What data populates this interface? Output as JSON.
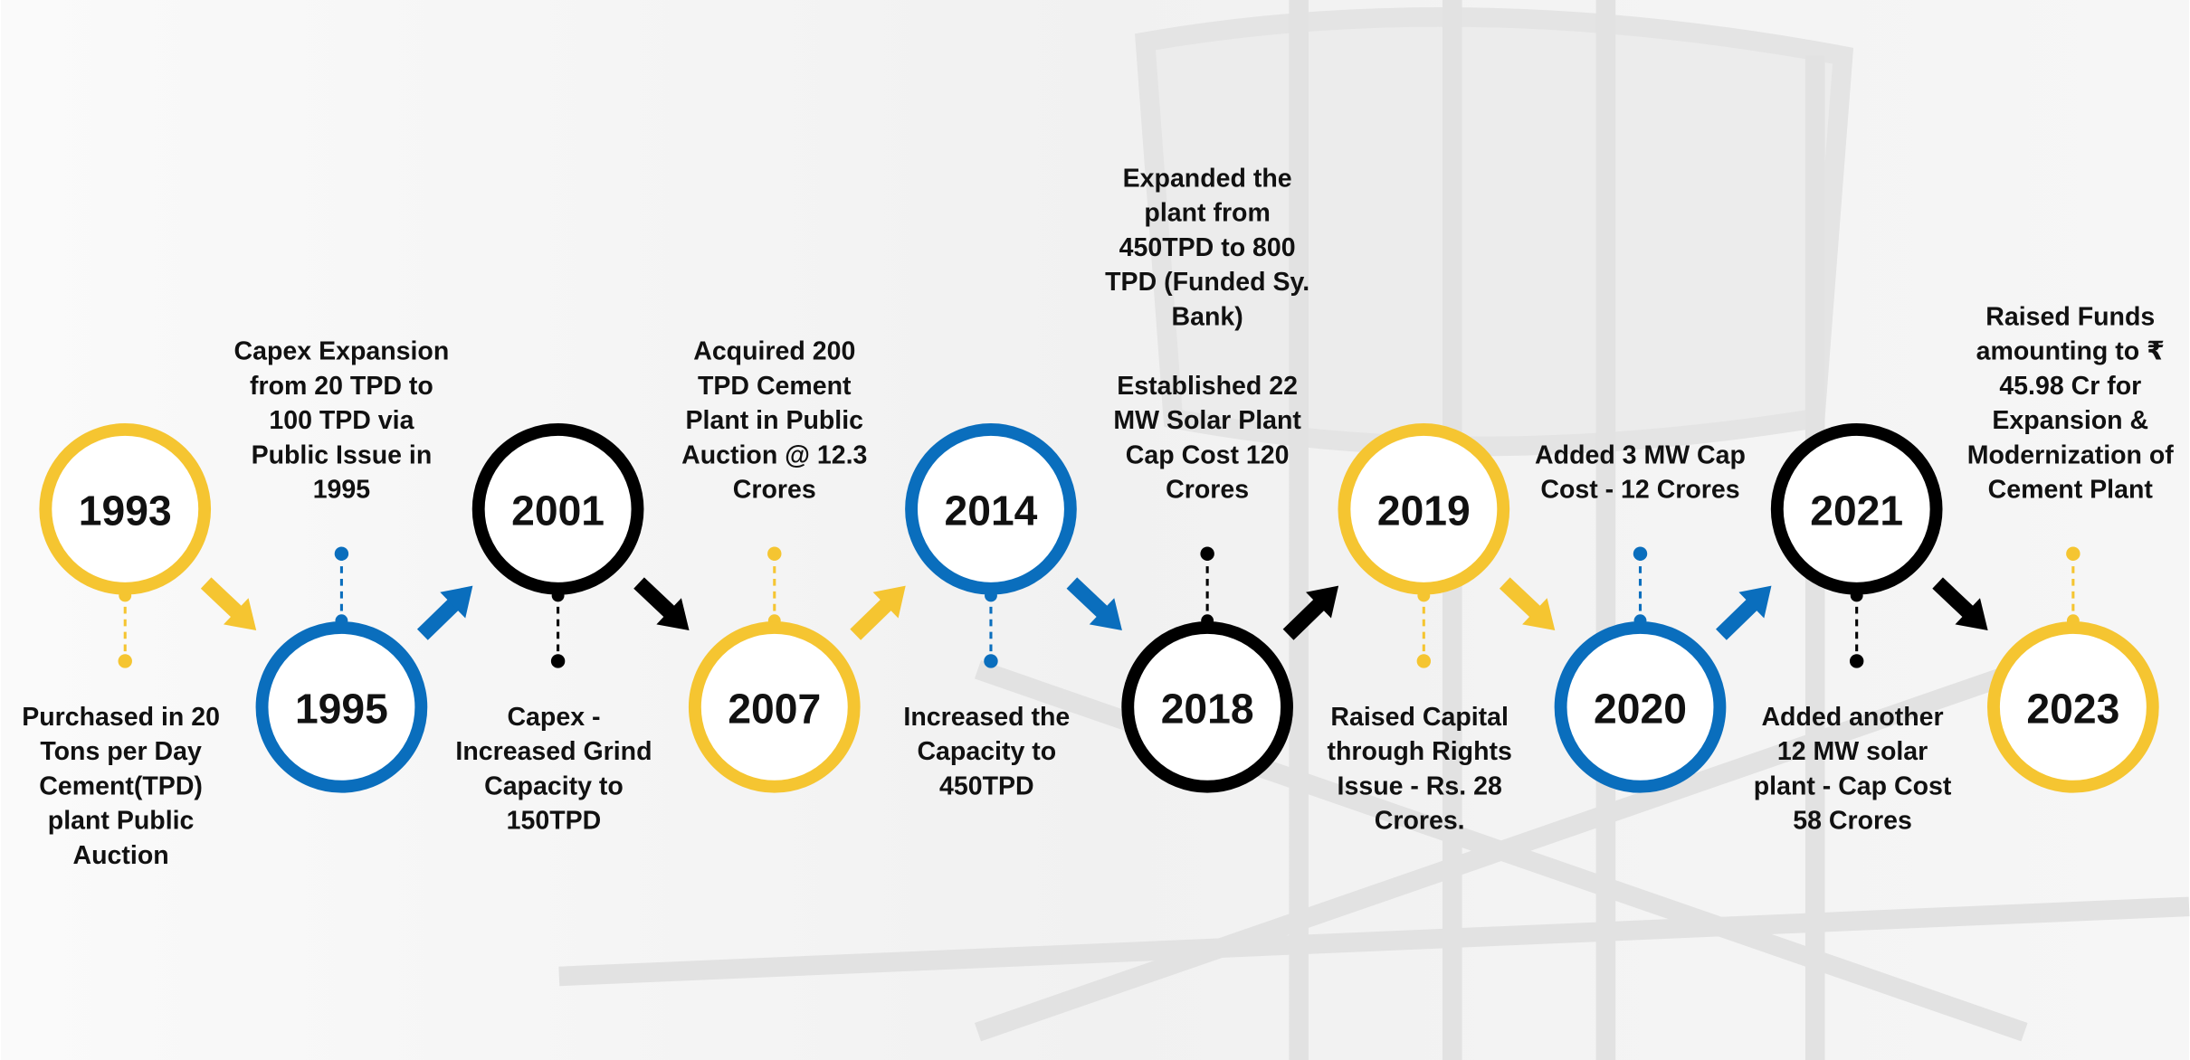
{
  "timeline": {
    "items": [
      {
        "year": "1993",
        "color": "#f5c531",
        "paragraphs": [
          [
            "Purchased in 20",
            "Tons per Day",
            "Cement(TPD)",
            "plant Public",
            "Auction"
          ]
        ]
      },
      {
        "year": "1995",
        "color": "#0a6ebd",
        "paragraphs": [
          [
            "Capex Expansion",
            "from 20 TPD to",
            "100 TPD via",
            "Public Issue in",
            "1995"
          ]
        ]
      },
      {
        "year": "2001",
        "color": "#000000",
        "paragraphs": [
          [
            "Capex -",
            "Increased Grind",
            "Capacity to",
            "150TPD"
          ]
        ]
      },
      {
        "year": "2007",
        "color": "#f5c531",
        "paragraphs": [
          [
            "Acquired 200",
            "TPD Cement",
            "Plant in Public",
            "Auction @ 12.3",
            "Crores"
          ]
        ]
      },
      {
        "year": "2014",
        "color": "#0a6ebd",
        "paragraphs": [
          [
            "Increased the",
            "Capacity to",
            "450TPD"
          ]
        ]
      },
      {
        "year": "2018",
        "color": "#000000",
        "paragraphs": [
          [
            "Expanded the",
            "plant from",
            "450TPD to 800",
            "TPD (Funded Sy.",
            "Bank)"
          ],
          [
            "Established 22",
            "MW Solar Plant",
            "Cap Cost 120",
            "Crores"
          ]
        ]
      },
      {
        "year": "2019",
        "color": "#f5c531",
        "paragraphs": [
          [
            "Raised Capital",
            "through Rights",
            "Issue - Rs. 28",
            "Crores."
          ]
        ]
      },
      {
        "year": "2020",
        "color": "#0a6ebd",
        "paragraphs": [
          [
            "Added 3 MW Cap",
            "Cost - 12 Crores"
          ]
        ]
      },
      {
        "year": "2021",
        "color": "#000000",
        "paragraphs": [
          [
            "Added another",
            "12 MW solar",
            "plant - Cap Cost",
            "58 Crores"
          ]
        ]
      },
      {
        "year": "2023",
        "color": "#f5c531",
        "paragraphs": [
          [
            "Raised Funds",
            "amounting to ₹",
            "45.98 Cr for",
            "Expansion &",
            "Modernization of",
            "Cement Plant"
          ]
        ]
      }
    ]
  }
}
